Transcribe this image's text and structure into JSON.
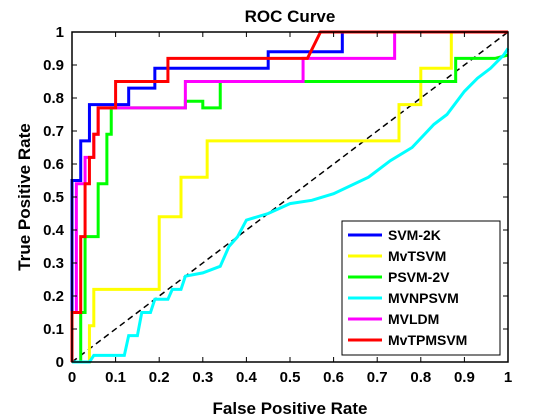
{
  "chart_data": {
    "type": "line",
    "title": "ROC Curve",
    "xlabel": "False Positive Rate",
    "ylabel": "True Positive Rate",
    "xlim": [
      0,
      1
    ],
    "ylim": [
      0,
      1
    ],
    "xticks": [
      "0",
      "0.1",
      "0.2",
      "0.3",
      "0.4",
      "0.5",
      "0.6",
      "0.7",
      "0.8",
      "0.9",
      "1"
    ],
    "yticks": [
      "0",
      "0.1",
      "0.2",
      "0.3",
      "0.4",
      "0.5",
      "0.6",
      "0.7",
      "0.8",
      "0.9",
      "1"
    ],
    "grid": false,
    "legend_position": "bottom-right",
    "diagonal": {
      "style": "dashed",
      "color": "#000000",
      "points": [
        [
          0,
          0
        ],
        [
          1,
          1
        ]
      ]
    },
    "series": [
      {
        "name": "SVM-2K",
        "color": "#0000ff",
        "points": [
          [
            0,
            0
          ],
          [
            0,
            0.55
          ],
          [
            0.02,
            0.55
          ],
          [
            0.02,
            0.67
          ],
          [
            0.04,
            0.67
          ],
          [
            0.04,
            0.78
          ],
          [
            0.13,
            0.78
          ],
          [
            0.13,
            0.83
          ],
          [
            0.19,
            0.83
          ],
          [
            0.19,
            0.89
          ],
          [
            0.45,
            0.89
          ],
          [
            0.45,
            0.94
          ],
          [
            0.62,
            0.94
          ],
          [
            0.62,
            1.0
          ],
          [
            1.0,
            1.0
          ]
        ]
      },
      {
        "name": "MvTSVM",
        "color": "#ffff00",
        "points": [
          [
            0,
            0
          ],
          [
            0.04,
            0
          ],
          [
            0.04,
            0.11
          ],
          [
            0.05,
            0.11
          ],
          [
            0.05,
            0.22
          ],
          [
            0.2,
            0.22
          ],
          [
            0.2,
            0.44
          ],
          [
            0.25,
            0.44
          ],
          [
            0.25,
            0.56
          ],
          [
            0.31,
            0.56
          ],
          [
            0.31,
            0.67
          ],
          [
            0.75,
            0.67
          ],
          [
            0.75,
            0.78
          ],
          [
            0.8,
            0.78
          ],
          [
            0.8,
            0.89
          ],
          [
            0.87,
            0.89
          ],
          [
            0.87,
            1.0
          ],
          [
            1.0,
            1.0
          ]
        ]
      },
      {
        "name": "PSVM-2V",
        "color": "#00ff00",
        "points": [
          [
            0,
            0
          ],
          [
            0.02,
            0
          ],
          [
            0.02,
            0.15
          ],
          [
            0.03,
            0.15
          ],
          [
            0.03,
            0.38
          ],
          [
            0.06,
            0.38
          ],
          [
            0.06,
            0.54
          ],
          [
            0.08,
            0.54
          ],
          [
            0.08,
            0.69
          ],
          [
            0.09,
            0.69
          ],
          [
            0.09,
            0.77
          ],
          [
            0.26,
            0.77
          ],
          [
            0.26,
            0.79
          ],
          [
            0.3,
            0.79
          ],
          [
            0.3,
            0.77
          ],
          [
            0.34,
            0.77
          ],
          [
            0.34,
            0.85
          ],
          [
            0.88,
            0.85
          ],
          [
            0.88,
            0.92
          ],
          [
            0.97,
            0.92
          ],
          [
            1.0,
            0.93
          ]
        ]
      },
      {
        "name": "MVNPSVM",
        "color": "#00ffff",
        "points": [
          [
            0,
            0
          ],
          [
            0.04,
            0
          ],
          [
            0.05,
            0.02
          ],
          [
            0.12,
            0.02
          ],
          [
            0.13,
            0.08
          ],
          [
            0.15,
            0.08
          ],
          [
            0.16,
            0.15
          ],
          [
            0.18,
            0.15
          ],
          [
            0.19,
            0.19
          ],
          [
            0.22,
            0.19
          ],
          [
            0.23,
            0.22
          ],
          [
            0.25,
            0.22
          ],
          [
            0.26,
            0.26
          ],
          [
            0.3,
            0.27
          ],
          [
            0.34,
            0.29
          ],
          [
            0.36,
            0.35
          ],
          [
            0.38,
            0.38
          ],
          [
            0.4,
            0.43
          ],
          [
            0.45,
            0.45
          ],
          [
            0.5,
            0.48
          ],
          [
            0.55,
            0.49
          ],
          [
            0.6,
            0.51
          ],
          [
            0.68,
            0.56
          ],
          [
            0.73,
            0.61
          ],
          [
            0.78,
            0.65
          ],
          [
            0.83,
            0.72
          ],
          [
            0.86,
            0.75
          ],
          [
            0.9,
            0.82
          ],
          [
            0.93,
            0.86
          ],
          [
            0.96,
            0.89
          ],
          [
            0.99,
            0.93
          ],
          [
            1.0,
            0.95
          ]
        ]
      },
      {
        "name": "MVLDM",
        "color": "#ff00ff",
        "points": [
          [
            0,
            0
          ],
          [
            0,
            0.15
          ],
          [
            0.01,
            0.15
          ],
          [
            0.01,
            0.54
          ],
          [
            0.03,
            0.54
          ],
          [
            0.03,
            0.62
          ],
          [
            0.05,
            0.62
          ],
          [
            0.05,
            0.69
          ],
          [
            0.06,
            0.69
          ],
          [
            0.06,
            0.77
          ],
          [
            0.26,
            0.77
          ],
          [
            0.26,
            0.85
          ],
          [
            0.53,
            0.85
          ],
          [
            0.53,
            0.92
          ],
          [
            0.74,
            0.92
          ],
          [
            0.74,
            1.0
          ],
          [
            1.0,
            1.0
          ]
        ]
      },
      {
        "name": "MvTPMSVM",
        "color": "#ff0000",
        "points": [
          [
            0,
            0
          ],
          [
            0,
            0.15
          ],
          [
            0.02,
            0.15
          ],
          [
            0.02,
            0.38
          ],
          [
            0.03,
            0.38
          ],
          [
            0.03,
            0.54
          ],
          [
            0.04,
            0.54
          ],
          [
            0.04,
            0.62
          ],
          [
            0.05,
            0.62
          ],
          [
            0.05,
            0.69
          ],
          [
            0.06,
            0.69
          ],
          [
            0.06,
            0.77
          ],
          [
            0.1,
            0.77
          ],
          [
            0.1,
            0.85
          ],
          [
            0.22,
            0.85
          ],
          [
            0.22,
            0.92
          ],
          [
            0.54,
            0.92
          ],
          [
            0.57,
            1.0
          ],
          [
            1.0,
            1.0
          ]
        ]
      }
    ]
  }
}
